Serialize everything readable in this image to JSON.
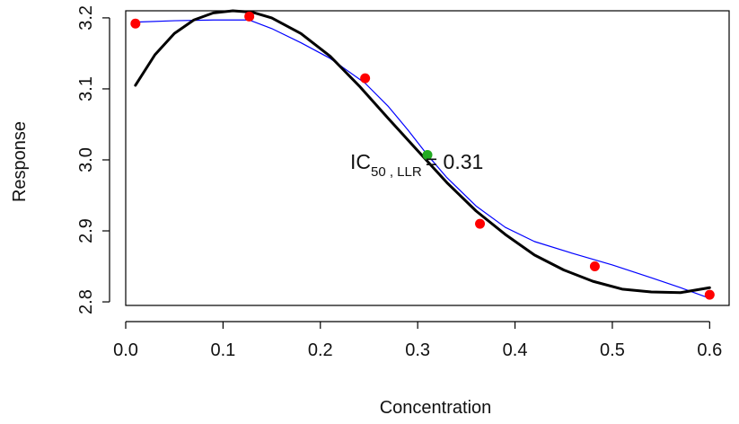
{
  "chart_data": {
    "type": "scatter",
    "xlabel": "Concentration",
    "ylabel": "Response",
    "xlim": [
      0.0,
      0.62
    ],
    "ylim": [
      2.795,
      3.21
    ],
    "x_ticks": [
      0.0,
      0.1,
      0.2,
      0.3,
      0.4,
      0.5,
      0.6
    ],
    "x_tick_labels": [
      "0.0",
      "0.1",
      "0.2",
      "0.3",
      "0.4",
      "0.5",
      "0.6"
    ],
    "y_ticks": [
      2.8,
      2.9,
      3.0,
      3.1,
      3.2
    ],
    "y_tick_labels": [
      "2.8",
      "2.9",
      "3.0",
      "3.1",
      "3.2"
    ],
    "grid": false,
    "series": [
      {
        "type": "scatter",
        "color": "#ff0000",
        "points": [
          {
            "x": 0.01,
            "y": 3.192
          },
          {
            "x": 0.127,
            "y": 3.202
          },
          {
            "x": 0.246,
            "y": 3.115
          },
          {
            "x": 0.364,
            "y": 2.91
          },
          {
            "x": 0.482,
            "y": 2.85
          },
          {
            "x": 0.6,
            "y": 2.81
          }
        ]
      },
      {
        "type": "line",
        "color": "#0000ff",
        "x": [
          0.01,
          0.05,
          0.09,
          0.127,
          0.15,
          0.18,
          0.21,
          0.246,
          0.27,
          0.29,
          0.31,
          0.33,
          0.36,
          0.39,
          0.42,
          0.46,
          0.5,
          0.54,
          0.57,
          0.6
        ],
        "y": [
          3.194,
          3.196,
          3.197,
          3.197,
          3.185,
          3.165,
          3.143,
          3.108,
          3.075,
          3.042,
          3.007,
          2.975,
          2.935,
          2.905,
          2.885,
          2.868,
          2.852,
          2.834,
          2.82,
          2.805
        ]
      },
      {
        "type": "line",
        "color": "#000000",
        "x": [
          0.01,
          0.03,
          0.05,
          0.07,
          0.09,
          0.11,
          0.13,
          0.15,
          0.18,
          0.21,
          0.24,
          0.27,
          0.3,
          0.33,
          0.36,
          0.39,
          0.42,
          0.45,
          0.48,
          0.51,
          0.54,
          0.57,
          0.6
        ],
        "y": [
          3.105,
          3.148,
          3.178,
          3.197,
          3.207,
          3.21,
          3.208,
          3.2,
          3.178,
          3.146,
          3.104,
          3.058,
          3.013,
          2.968,
          2.928,
          2.895,
          2.866,
          2.845,
          2.829,
          2.818,
          2.814,
          2.813,
          2.82
        ]
      },
      {
        "type": "marker",
        "color": "#22aa22",
        "points": [
          {
            "x": 0.31,
            "y": 3.007
          }
        ]
      }
    ],
    "annotation": {
      "text": "IC",
      "subscript": "50 , LLR",
      "suffix": "= 0.31"
    }
  }
}
